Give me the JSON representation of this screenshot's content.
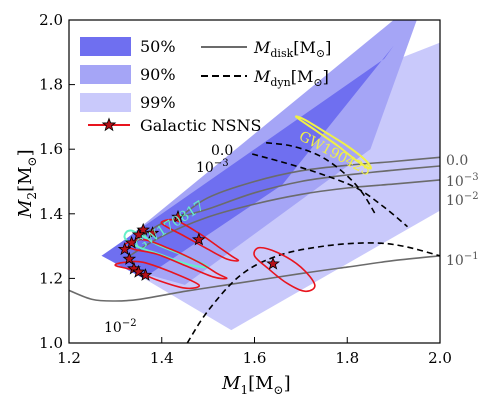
{
  "chart_data": {
    "type": "line",
    "xlabel": "M",
    "xlabel_sub": "1",
    "xlabel_unit": "[M",
    "xlabel_unit_sub": "⊙",
    "xlabel_unit_end": "]",
    "ylabel": "M",
    "ylabel_sub": "2",
    "ylabel_unit": "[M",
    "ylabel_unit_sub": "⊙",
    "ylabel_unit_end": "]",
    "xlim": [
      1.2,
      2.0
    ],
    "ylim": [
      1.0,
      2.0
    ],
    "xticks": [
      "1.2",
      "1.4",
      "1.6",
      "1.8",
      "2.0"
    ],
    "yticks": [
      "1.0",
      "1.2",
      "1.4",
      "1.6",
      "1.8",
      "2.0"
    ],
    "xtick_values": [
      1.2,
      1.4,
      1.6,
      1.8,
      2.0
    ],
    "ytick_values": [
      1.0,
      1.2,
      1.4,
      1.6,
      1.8,
      2.0
    ],
    "grid": false,
    "legend_position": "top-left",
    "legend": {
      "region_50": "50%",
      "region_90": "90%",
      "region_99": "99%",
      "disk_main": "M",
      "disk_sub": "disk",
      "disk_unit": "[M",
      "disk_unit_sub": "⊙",
      "disk_unit_end": "]",
      "dyn_main": "M",
      "dyn_sub": "dyn",
      "dyn_unit": "[M",
      "dyn_unit_sub": "⊙",
      "dyn_unit_end": "]",
      "nsns": "Galactic NSNS"
    },
    "colors": {
      "region_99": "#c9c9fb",
      "region_90": "#a5a5f6",
      "region_50": "#6f6ff0",
      "disk": "#6b6b6b",
      "dyn": "#000000",
      "gw170817": "#66f0c8",
      "gw190425": "#f0f046",
      "nsns_contour": "#e8141e",
      "nsns_marker": "#b51018"
    },
    "regions": [
      {
        "level": "99%",
        "polygon": [
          [
            1.35,
            1.21
          ],
          [
            1.55,
            1.04
          ],
          [
            2.0,
            1.41
          ],
          [
            2.0,
            1.93
          ],
          [
            1.84,
            1.84
          ],
          [
            1.38,
            1.38
          ]
        ]
      },
      {
        "level": "90%",
        "polygon": [
          [
            1.3,
            1.24
          ],
          [
            1.45,
            1.18
          ],
          [
            1.85,
            1.6
          ],
          [
            1.95,
            2.0
          ],
          [
            1.9,
            2.0
          ],
          [
            1.33,
            1.33
          ]
        ]
      },
      {
        "level": "50%",
        "polygon": [
          [
            1.27,
            1.27
          ],
          [
            1.36,
            1.2
          ],
          [
            1.66,
            1.49
          ],
          [
            1.9,
            1.92
          ],
          [
            1.88,
            1.88
          ]
        ]
      }
    ],
    "disk_curves": [
      {
        "label": "0.0",
        "points": [
          [
            1.43,
            1.38
          ],
          [
            1.5,
            1.45
          ],
          [
            1.6,
            1.5
          ],
          [
            1.7,
            1.533
          ],
          [
            1.8,
            1.55
          ],
          [
            1.9,
            1.562
          ],
          [
            2.0,
            1.575
          ]
        ]
      },
      {
        "label": "10^-3",
        "points": [
          [
            1.32,
            1.29
          ],
          [
            1.4,
            1.37
          ],
          [
            1.5,
            1.415
          ],
          [
            1.6,
            1.465
          ],
          [
            1.7,
            1.5
          ],
          [
            1.8,
            1.52
          ],
          [
            1.9,
            1.535
          ],
          [
            2.0,
            1.548
          ]
        ]
      },
      {
        "label": "10^-2",
        "points": [
          [
            1.32,
            1.26
          ],
          [
            1.4,
            1.33
          ],
          [
            1.5,
            1.39
          ],
          [
            1.6,
            1.43
          ],
          [
            1.7,
            1.46
          ],
          [
            1.8,
            1.48
          ],
          [
            1.9,
            1.492
          ],
          [
            2.0,
            1.505
          ]
        ]
      },
      {
        "label": "10^-1",
        "points": [
          [
            1.2,
            1.163
          ],
          [
            1.25,
            1.135
          ],
          [
            1.3,
            1.13
          ],
          [
            1.35,
            1.135
          ],
          [
            1.45,
            1.16
          ],
          [
            1.55,
            1.182
          ],
          [
            1.7,
            1.215
          ],
          [
            1.8,
            1.235
          ],
          [
            1.9,
            1.255
          ],
          [
            2.0,
            1.27
          ]
        ]
      }
    ],
    "dyn_curves": [
      {
        "label": "0.0",
        "points": [
          [
            1.625,
            1.62
          ],
          [
            1.68,
            1.61
          ],
          [
            1.74,
            1.58
          ],
          [
            1.79,
            1.53
          ],
          [
            1.83,
            1.47
          ],
          [
            1.86,
            1.4
          ]
        ]
      },
      {
        "label": "10^-3",
        "points": [
          [
            1.595,
            1.585
          ],
          [
            1.66,
            1.56
          ],
          [
            1.74,
            1.525
          ],
          [
            1.82,
            1.48
          ],
          [
            1.88,
            1.42
          ],
          [
            1.93,
            1.36
          ]
        ]
      },
      {
        "label": "10^-2",
        "points": [
          [
            1.455,
            1.0
          ],
          [
            1.5,
            1.1
          ],
          [
            1.57,
            1.21
          ],
          [
            1.65,
            1.27
          ],
          [
            1.75,
            1.3
          ],
          [
            1.85,
            1.31
          ],
          [
            1.92,
            1.3
          ],
          [
            2.0,
            1.27
          ]
        ]
      }
    ],
    "gw_regions": [
      {
        "name": "GW170817",
        "color": "gw170817",
        "points": [
          [
            1.335,
            1.348
          ],
          [
            1.39,
            1.305
          ],
          [
            1.45,
            1.27
          ],
          [
            1.5,
            1.236
          ],
          [
            1.46,
            1.242
          ],
          [
            1.4,
            1.272
          ],
          [
            1.345,
            1.3
          ],
          [
            1.32,
            1.326
          ]
        ]
      },
      {
        "name": "GW190425",
        "color": "gw190425",
        "points": [
          [
            1.69,
            1.7
          ],
          [
            1.73,
            1.66
          ],
          [
            1.78,
            1.61
          ],
          [
            1.82,
            1.565
          ],
          [
            1.85,
            1.54
          ],
          [
            1.84,
            1.565
          ],
          [
            1.8,
            1.61
          ],
          [
            1.75,
            1.655
          ],
          [
            1.71,
            1.69
          ]
        ]
      }
    ],
    "nsns_contours": [
      {
        "points": [
          [
            1.32,
            1.305
          ],
          [
            1.36,
            1.32
          ],
          [
            1.42,
            1.29
          ],
          [
            1.48,
            1.25
          ],
          [
            1.52,
            1.215
          ],
          [
            1.54,
            1.2
          ],
          [
            1.51,
            1.205
          ],
          [
            1.45,
            1.24
          ],
          [
            1.39,
            1.275
          ],
          [
            1.34,
            1.29
          ]
        ]
      },
      {
        "points": [
          [
            1.4,
            1.375
          ],
          [
            1.43,
            1.38
          ],
          [
            1.48,
            1.34
          ],
          [
            1.52,
            1.3
          ],
          [
            1.55,
            1.27
          ],
          [
            1.565,
            1.255
          ],
          [
            1.54,
            1.26
          ],
          [
            1.5,
            1.29
          ],
          [
            1.45,
            1.33
          ],
          [
            1.41,
            1.36
          ]
        ]
      },
      {
        "points": [
          [
            1.61,
            1.295
          ],
          [
            1.65,
            1.28
          ],
          [
            1.7,
            1.235
          ],
          [
            1.73,
            1.18
          ],
          [
            1.71,
            1.16
          ],
          [
            1.67,
            1.185
          ],
          [
            1.63,
            1.23
          ],
          [
            1.6,
            1.27
          ]
        ]
      },
      {
        "points": [
          [
            1.32,
            1.25
          ],
          [
            1.36,
            1.25
          ],
          [
            1.42,
            1.22
          ],
          [
            1.48,
            1.18
          ],
          [
            1.45,
            1.17
          ],
          [
            1.39,
            1.195
          ],
          [
            1.34,
            1.225
          ],
          [
            1.3,
            1.24
          ]
        ]
      }
    ],
    "nsns_points": [
      {
        "x": 1.435,
        "y": 1.39
      },
      {
        "x": 1.48,
        "y": 1.32
      },
      {
        "x": 1.36,
        "y": 1.35
      },
      {
        "x": 1.38,
        "y": 1.34
      },
      {
        "x": 1.35,
        "y": 1.335
      },
      {
        "x": 1.335,
        "y": 1.31
      },
      {
        "x": 1.32,
        "y": 1.29
      },
      {
        "x": 1.33,
        "y": 1.26
      },
      {
        "x": 1.34,
        "y": 1.23
      },
      {
        "x": 1.35,
        "y": 1.22
      },
      {
        "x": 1.365,
        "y": 1.21
      },
      {
        "x": 1.64,
        "y": 1.245
      }
    ],
    "annotations": {
      "gw170817": "GW170817",
      "gw190425": "GW190425",
      "disk_0": "0.0",
      "disk_1e3_base": "10",
      "disk_1e3_exp": "−3",
      "disk_1e2_base": "10",
      "disk_1e2_exp": "−2",
      "disk_1e1_base": "10",
      "disk_1e1_exp": "−1",
      "dyn_0": "0.0",
      "dyn_1e3_base": "10",
      "dyn_1e3_exp": "−3",
      "dyn_1e2_base": "10",
      "dyn_1e2_exp": "−2"
    }
  }
}
